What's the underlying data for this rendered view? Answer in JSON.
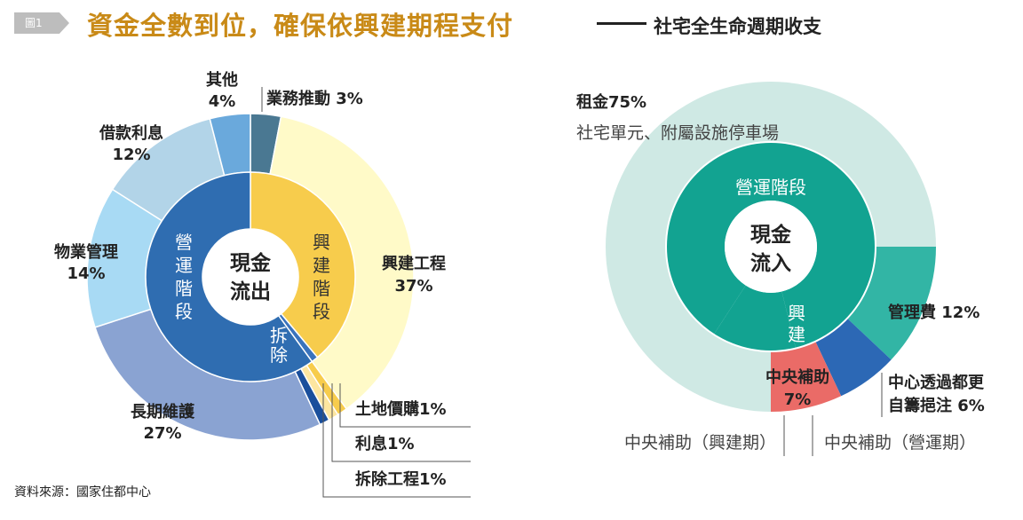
{
  "header": {
    "figure_label": "圖1",
    "title": "資金全數到位，確保依興建期程支付",
    "subtitle": "社宅全生命週期收支"
  },
  "source": "資料來源：國家住都中心",
  "colors": {
    "title": "#c98a17",
    "construction_dark": "#f7cc4c",
    "construction_light": "#fffac8",
    "operation_dark": "#2f6db1",
    "inflow_dark": "#12a391",
    "inflow_light": "#cfe9e4",
    "subsidy_red": "#ea6b67"
  },
  "chart_data": [
    {
      "type": "pie",
      "variant": "nested-donut",
      "center_label": [
        "現金",
        "流出"
      ],
      "inner_ring": [
        {
          "name": "興建階段",
          "label_chars": [
            "興",
            "建",
            "階",
            "段"
          ],
          "value": 37
        },
        {
          "name": "拆除",
          "label_chars": [
            "拆",
            "除"
          ],
          "value": 1
        },
        {
          "name": "營運階段",
          "label_chars": [
            "營",
            "運",
            "階",
            "段"
          ],
          "value": 57
        }
      ],
      "outer_ring": [
        {
          "name": "業務推動",
          "value": 3,
          "label": "3%",
          "text": "業務推動 3%"
        },
        {
          "name": "興建工程",
          "value": 37,
          "label": "37%"
        },
        {
          "name": "土地價購",
          "value": 1,
          "label": "1%",
          "text": "土地價購1%"
        },
        {
          "name": "利息",
          "value": 1,
          "label": "1%",
          "text": "利息1%"
        },
        {
          "name": "拆除工程",
          "value": 1,
          "label": "1%",
          "text": "拆除工程1%"
        },
        {
          "name": "長期維護",
          "value": 27,
          "label": "27%"
        },
        {
          "name": "物業管理",
          "value": 14,
          "label": "14%"
        },
        {
          "name": "借款利息",
          "value": 12,
          "label": "12%"
        },
        {
          "name": "其他",
          "value": 4,
          "label": "4%"
        }
      ]
    },
    {
      "type": "pie",
      "variant": "nested-donut",
      "center_label": [
        "現金",
        "流入"
      ],
      "inner_ring": [
        {
          "name": "營運階段",
          "value": 87
        },
        {
          "name": "興建",
          "label_chars": [
            "興",
            "建"
          ],
          "value": 13
        }
      ],
      "outer_ring": [
        {
          "name": "管理費",
          "value": 12,
          "text": "管理費 12%"
        },
        {
          "name": "中心透過都更自籌挹注",
          "value": 6,
          "text_lines": [
            "中心透過都更",
            "自籌挹注 6%"
          ]
        },
        {
          "name": "中央補助",
          "value": 7,
          "text_lines": [
            "中央補助",
            "7%"
          ]
        },
        {
          "name": "租金",
          "value": 75,
          "text_lines": [
            "租金75%",
            "社宅單元、附屬設施停車場"
          ]
        }
      ],
      "callouts": [
        "中央補助（興建期）",
        "中央補助（營運期）"
      ]
    }
  ]
}
